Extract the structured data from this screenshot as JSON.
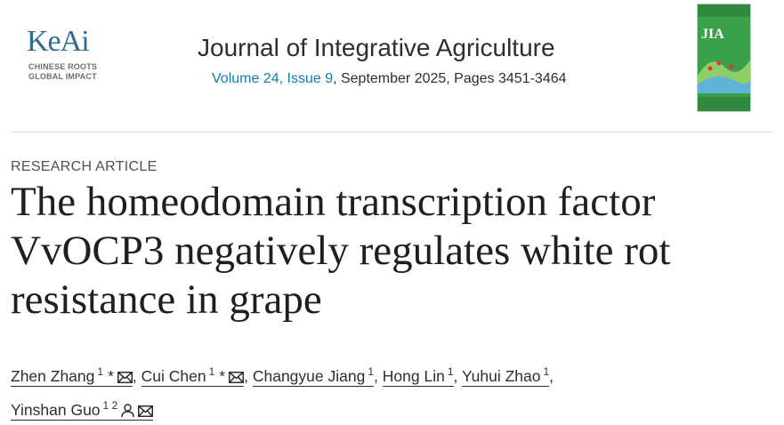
{
  "header": {
    "publisher": {
      "name": "KeAi",
      "tagline": [
        "CHINESE ROOTS",
        "GLOBAL IMPACT"
      ]
    },
    "journal": "Journal of Integrative Agriculture",
    "issue_link": "Volume 24, Issue 9",
    "issue_rest": ", September 2025, Pages 3451-3464",
    "cover": {
      "label": "JIA"
    }
  },
  "article": {
    "type": "RESEARCH ARTICLE",
    "title": "The homeodomain transcription factor VvOCP3 negatively regulates white rot resistance in grape",
    "separator": ",",
    "authors": [
      {
        "name": "Zhen Zhang",
        "affiliations": [
          "1"
        ],
        "marker": "*",
        "email": true,
        "person": false
      },
      {
        "name": "Cui Chen",
        "affiliations": [
          "1"
        ],
        "marker": "*",
        "email": true,
        "person": false
      },
      {
        "name": "Changyue Jiang",
        "affiliations": [
          "1"
        ],
        "marker": null,
        "email": false,
        "person": false
      },
      {
        "name": "Hong Lin",
        "affiliations": [
          "1"
        ],
        "marker": null,
        "email": false,
        "person": false
      },
      {
        "name": "Yuhui Zhao",
        "affiliations": [
          "1"
        ],
        "marker": null,
        "email": false,
        "person": false
      },
      {
        "name": "Yinshan Guo",
        "affiliations": [
          "1",
          "2"
        ],
        "marker": null,
        "email": true,
        "person": true
      }
    ]
  }
}
